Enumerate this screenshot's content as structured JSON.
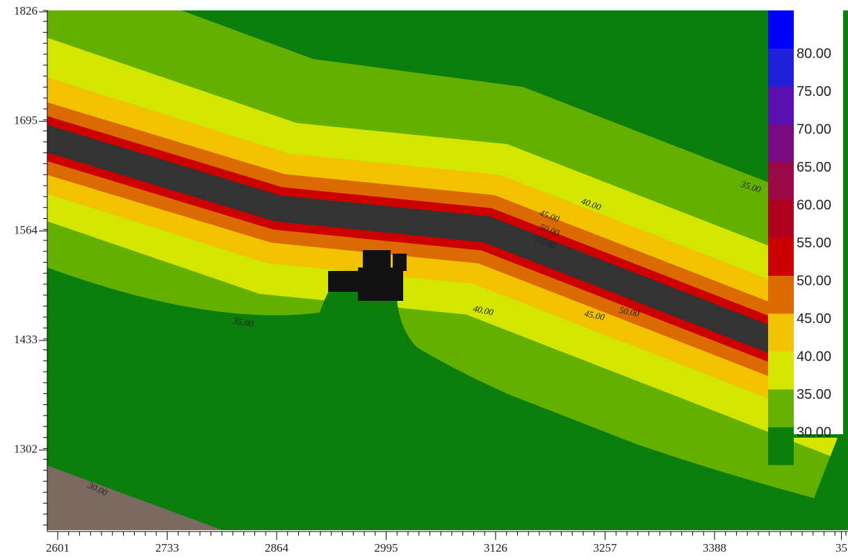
{
  "x_axis": {
    "ticks": [
      "2601",
      "2733",
      "2864",
      "2995",
      "3126",
      "3257",
      "3388",
      "35"
    ]
  },
  "y_axis": {
    "ticks": [
      "1826",
      "1695",
      "1564",
      "1433",
      "1302"
    ]
  },
  "legend": {
    "items": [
      {
        "label": "80.00",
        "color": "#2020d8"
      },
      {
        "label": "75.00",
        "color": "#5a10b0"
      },
      {
        "label": "70.00",
        "color": "#7a0a80"
      },
      {
        "label": "65.00",
        "color": "#9a0848"
      },
      {
        "label": "60.00",
        "color": "#b00020"
      },
      {
        "label": "55.00",
        "color": "#cc0000"
      },
      {
        "label": "50.00",
        "color": "#db6a00"
      },
      {
        "label": "45.00",
        "color": "#f2c400"
      },
      {
        "label": "40.00",
        "color": "#d6e600"
      },
      {
        "label": "35.00",
        "color": "#66b000"
      },
      {
        "label": "30.00",
        "color": "#0a800a"
      }
    ],
    "top_color": "#0000ff"
  },
  "contour_labels": [
    "35.00",
    "40.00",
    "45.00",
    "50.00",
    "45.00",
    "50.00",
    "55.00",
    "40.00",
    "35.00",
    "30.00"
  ]
}
